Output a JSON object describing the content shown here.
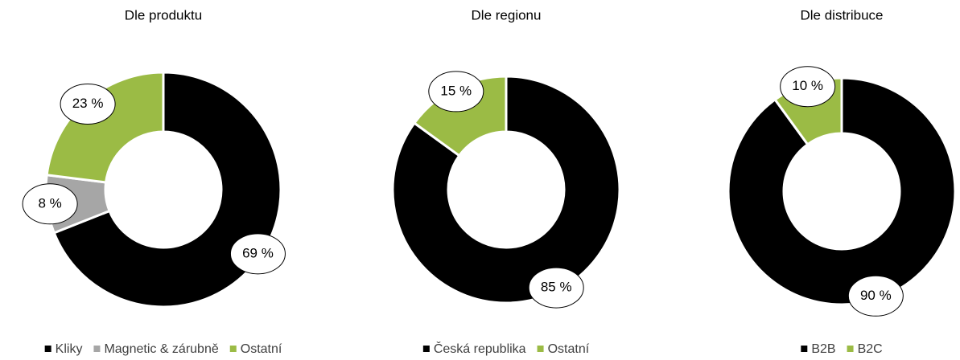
{
  "chart_data": [
    {
      "type": "pie",
      "title": "Dle produktu",
      "categories": [
        "Kliky",
        "Magnetic & zárubně",
        "Ostatní"
      ],
      "values": [
        69,
        8,
        23
      ],
      "value_labels": [
        "69 %",
        "8 %",
        "23 %"
      ],
      "colors": [
        "#000000",
        "#a6a6a6",
        "#9bbb45"
      ],
      "donut": true
    },
    {
      "type": "pie",
      "title": "Dle regionu",
      "categories": [
        "Česká republika",
        "Ostatní"
      ],
      "values": [
        85,
        15
      ],
      "value_labels": [
        "85 %",
        "15 %"
      ],
      "colors": [
        "#000000",
        "#9bbb45"
      ],
      "donut": true
    },
    {
      "type": "pie",
      "title": "Dle distribuce",
      "categories": [
        "B2B",
        "B2C"
      ],
      "values": [
        90,
        10
      ],
      "value_labels": [
        "90 %",
        "10 %"
      ],
      "colors": [
        "#000000",
        "#9bbb45"
      ],
      "donut": true
    }
  ]
}
